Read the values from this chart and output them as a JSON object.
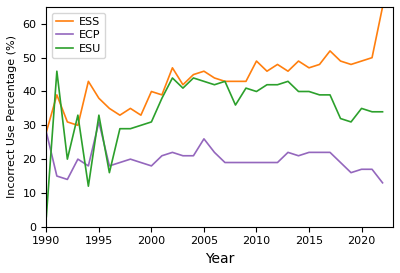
{
  "ESS": {
    "years": [
      1990,
      1991,
      1992,
      1993,
      1994,
      1995,
      1996,
      1997,
      1998,
      1999,
      2000,
      2001,
      2002,
      2003,
      2004,
      2005,
      2006,
      2007,
      2008,
      2009,
      2010,
      2011,
      2012,
      2013,
      2014,
      2015,
      2016,
      2017,
      2018,
      2019,
      2020,
      2021,
      2022
    ],
    "values": [
      28,
      39,
      31,
      30,
      43,
      38,
      35,
      33,
      35,
      33,
      40,
      39,
      47,
      42,
      45,
      46,
      44,
      43,
      43,
      43,
      49,
      46,
      48,
      46,
      49,
      47,
      48,
      52,
      49,
      48,
      49,
      50,
      65
    ]
  },
  "ECP": {
    "years": [
      1990,
      1991,
      1992,
      1993,
      1994,
      1995,
      1996,
      1997,
      1998,
      1999,
      2000,
      2001,
      2002,
      2003,
      2004,
      2005,
      2006,
      2007,
      2008,
      2009,
      2010,
      2011,
      2012,
      2013,
      2014,
      2015,
      2016,
      2017,
      2018,
      2019,
      2020,
      2021,
      2022
    ],
    "values": [
      28,
      15,
      14,
      20,
      18,
      31,
      18,
      19,
      20,
      19,
      18,
      21,
      22,
      21,
      21,
      26,
      22,
      19,
      19,
      19,
      19,
      19,
      19,
      22,
      21,
      22,
      22,
      22,
      19,
      16,
      17,
      17,
      13
    ]
  },
  "ESU": {
    "years": [
      1990,
      1991,
      1992,
      1993,
      1994,
      1995,
      1996,
      1997,
      1998,
      1999,
      2000,
      2001,
      2002,
      2003,
      2004,
      2005,
      2006,
      2007,
      2008,
      2009,
      2010,
      2011,
      2012,
      2013,
      2014,
      2015,
      2016,
      2017,
      2018,
      2019,
      2020,
      2021,
      2022
    ],
    "values": [
      3,
      46,
      20,
      33,
      12,
      33,
      16,
      29,
      29,
      30,
      31,
      38,
      44,
      41,
      44,
      43,
      42,
      43,
      36,
      41,
      40,
      42,
      42,
      43,
      40,
      40,
      39,
      39,
      32,
      31,
      35,
      34,
      34
    ]
  },
  "colors": {
    "ESS": "#FF7F0E",
    "ECP": "#9467BD",
    "ESU": "#2CA02C"
  },
  "xlabel": "Year",
  "ylabel": "Incorrect Use Percentage (%)",
  "xlim": [
    1990,
    2023
  ],
  "ylim": [
    0,
    65
  ],
  "xticks": [
    1990,
    1995,
    2000,
    2005,
    2010,
    2015,
    2020
  ],
  "yticks": [
    0,
    10,
    20,
    30,
    40,
    50,
    60
  ],
  "legend_fontsize": 8,
  "linewidth": 1.2
}
